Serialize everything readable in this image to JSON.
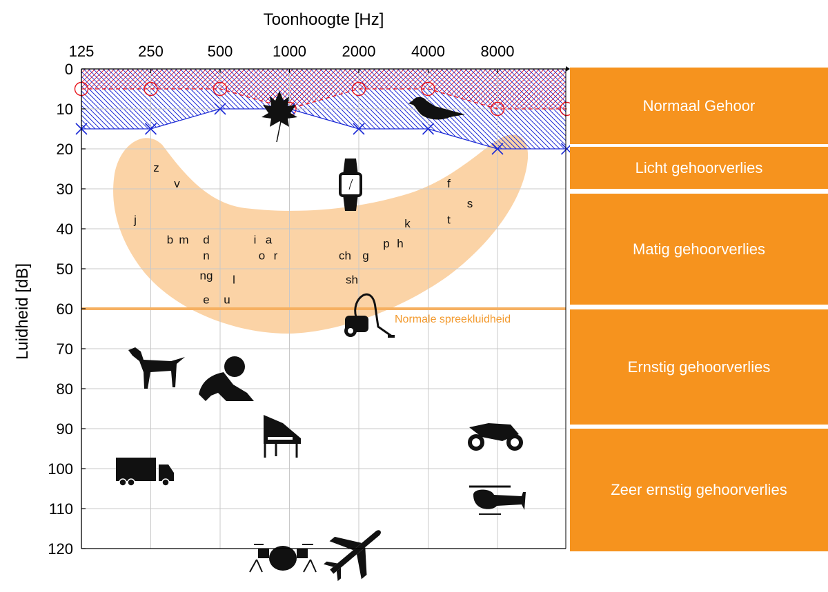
{
  "chart_data": {
    "type": "audiogram",
    "xlabel": "Toonhoogte [Hz]",
    "ylabel": "Luidheid [dB]",
    "x_ticks": [
      "125",
      "250",
      "500",
      "1000",
      "2000",
      "4000",
      "8000"
    ],
    "y_ticks": [
      "0",
      "10",
      "20",
      "30",
      "40",
      "50",
      "60",
      "70",
      "80",
      "90",
      "100",
      "110",
      "120"
    ],
    "ylim": [
      0,
      120
    ],
    "y_inverted": true,
    "grid": true,
    "series": [
      {
        "x": [
          "125",
          "250",
          "500",
          "1000",
          "2000",
          "4000",
          "8000",
          "16000"
        ],
        "values": [
          5,
          5,
          5,
          10,
          5,
          5,
          10,
          10
        ],
        "color": "#e8141c",
        "marker": "circle",
        "style": "dashed"
      },
      {
        "x": [
          "125",
          "250",
          "500",
          "1000",
          "2000",
          "4000",
          "8000",
          "16000"
        ],
        "values": [
          15,
          15,
          10,
          10,
          15,
          15,
          20,
          20
        ],
        "color": "#1d2bd6",
        "marker": "cross",
        "style": "solid"
      }
    ],
    "reference_line": {
      "label": "Normale spreekluidheid",
      "value": 60,
      "color": "#f6b061"
    },
    "speech_sounds": [
      {
        "text": "z",
        "x": "250",
        "y": 25
      },
      {
        "text": "v",
        "x": "250",
        "y": 29
      },
      {
        "text": "j",
        "x": "125",
        "y": 38
      },
      {
        "text": "b",
        "x": "250",
        "y": 43
      },
      {
        "text": "m",
        "x": "250",
        "y": 43
      },
      {
        "text": "d",
        "x": "500",
        "y": 43
      },
      {
        "text": "n",
        "x": "500",
        "y": 47
      },
      {
        "text": "ng",
        "x": "500",
        "y": 52
      },
      {
        "text": "l",
        "x": "500",
        "y": 53
      },
      {
        "text": "e",
        "x": "500",
        "y": 58
      },
      {
        "text": "u",
        "x": "500",
        "y": 58
      },
      {
        "text": "i",
        "x": "1000",
        "y": 43
      },
      {
        "text": "a",
        "x": "1000",
        "y": 43
      },
      {
        "text": "o",
        "x": "1000",
        "y": 47
      },
      {
        "text": "r",
        "x": "1000",
        "y": 47
      },
      {
        "text": "p",
        "x": "2000",
        "y": 44
      },
      {
        "text": "h",
        "x": "2000",
        "y": 44
      },
      {
        "text": "ch",
        "x": "2000",
        "y": 47
      },
      {
        "text": "g",
        "x": "2000",
        "y": 47
      },
      {
        "text": "sh",
        "x": "2000",
        "y": 53
      },
      {
        "text": "k",
        "x": "4000",
        "y": 39
      },
      {
        "text": "f",
        "x": "4000",
        "y": 29
      },
      {
        "text": "s",
        "x": "8000",
        "y": 34
      },
      {
        "text": "t",
        "x": "4000",
        "y": 38
      }
    ],
    "sound_icons": [
      {
        "name": "leaf-icon",
        "x": "1000",
        "y": 10
      },
      {
        "name": "bird-icon",
        "x": "4000",
        "y": 10
      },
      {
        "name": "watch-icon",
        "x": "2000",
        "y": 30
      },
      {
        "name": "vacuum-cleaner-icon",
        "x": "2000",
        "y": 62
      },
      {
        "name": "dog-icon",
        "x": "250",
        "y": 72
      },
      {
        "name": "baby-icon",
        "x": "500",
        "y": 79
      },
      {
        "name": "piano-icon",
        "x": "1000",
        "y": 91
      },
      {
        "name": "truck-icon",
        "x": "250",
        "y": 100
      },
      {
        "name": "motorcycle-icon",
        "x": "8000",
        "y": 92
      },
      {
        "name": "helicopter-icon",
        "x": "8000",
        "y": 107
      },
      {
        "name": "drums-icon",
        "x": "1000",
        "y": 120
      },
      {
        "name": "airplane-icon",
        "x": "2000",
        "y": 120
      }
    ]
  },
  "bands": [
    {
      "label": "Normaal Gehoor",
      "range": [
        0,
        20
      ]
    },
    {
      "label": "Licht gehoorverlies",
      "range": [
        20,
        30
      ]
    },
    {
      "label": "Matig gehoorverlies",
      "range": [
        30,
        60
      ]
    },
    {
      "label": "Ernstig gehoorverlies",
      "range": [
        60,
        90
      ]
    },
    {
      "label": "Zeer ernstig gehoorverlies",
      "range": [
        90,
        120
      ]
    }
  ],
  "colors": {
    "band": "#f6931e",
    "speech_banana": "#fbd3a6",
    "normal_hatch_red": "#e8141c",
    "normal_hatch_blue": "#1d2bd6"
  }
}
